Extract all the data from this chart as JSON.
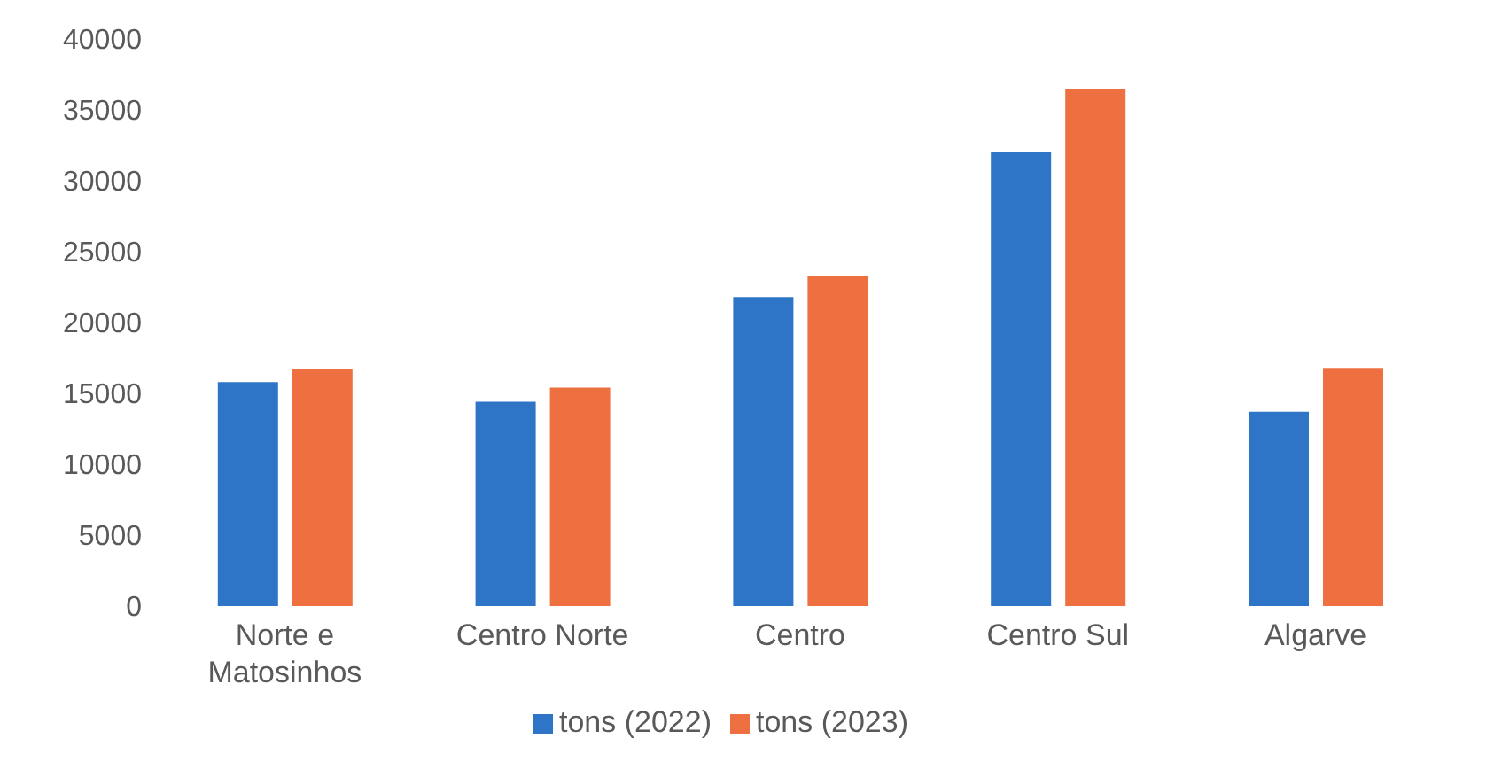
{
  "chart_data": {
    "type": "bar",
    "categories": [
      "Norte e Matosinhos",
      "Centro Norte",
      "Centro",
      "Centro Sul",
      "Algarve"
    ],
    "series": [
      {
        "name": "tons (2022)",
        "color": "#2e75c8",
        "values": [
          15800,
          14400,
          21800,
          32000,
          13700
        ]
      },
      {
        "name": "tons (2023)",
        "color": "#ee7040",
        "values": [
          16700,
          15400,
          23300,
          36500,
          16800
        ]
      }
    ],
    "ylim": [
      0,
      40000
    ],
    "yticks": [
      0,
      5000,
      10000,
      15000,
      20000,
      25000,
      30000,
      35000,
      40000
    ],
    "grid": false,
    "legend": "bottom"
  }
}
